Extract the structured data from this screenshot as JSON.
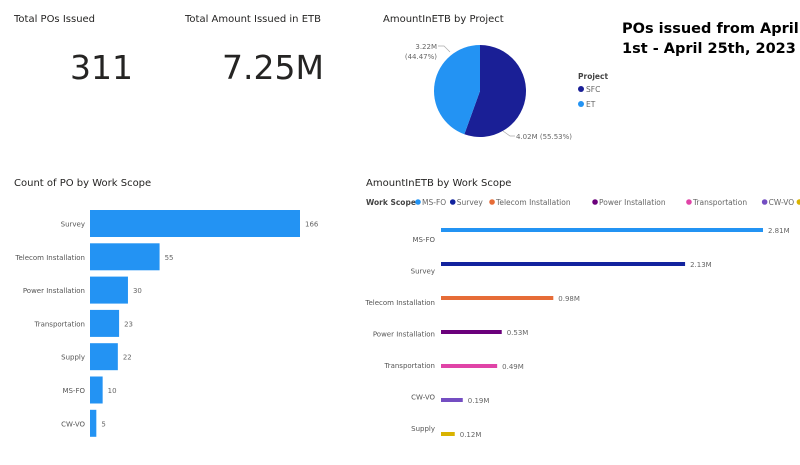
{
  "kpis": {
    "total_pos": {
      "label": "Total POs Issued",
      "value": "311"
    },
    "total_amount": {
      "label": "Total Amount Issued in ETB",
      "value": "7.25M"
    }
  },
  "note": {
    "line1": "POs issued  from April",
    "line2": "1st - April 25th, 2023"
  },
  "chart_data": [
    {
      "type": "pie",
      "title": "AmountInETB by Project",
      "legend_title": "Project",
      "legend_position": "right",
      "slices": [
        {
          "name": "SFC",
          "value": 4.02,
          "label": "4.02M (55.53%)",
          "color": "#1a1f96"
        },
        {
          "name": "ET",
          "value": 3.22,
          "label": "3.22M",
          "label2": "(44.47%)",
          "color": "#2393f3"
        }
      ]
    },
    {
      "type": "bar",
      "orientation": "horizontal",
      "title": "Count of PO by Work Scope",
      "categories": [
        "Survey",
        "Telecom Installation",
        "Power Installation",
        "Transportation",
        "Supply",
        "MS-FO",
        "CW-VO"
      ],
      "values": [
        166,
        55,
        30,
        23,
        22,
        10,
        5
      ],
      "color": "#2393f3",
      "xlim": [
        0,
        166
      ]
    },
    {
      "type": "bar",
      "orientation": "horizontal",
      "title": "AmountInETB by Work Scope",
      "legend_title": "Work Scope",
      "legend_position": "top-left",
      "categories": [
        "MS-FO",
        "Survey",
        "Telecom Installation",
        "Power Installation",
        "Transportation",
        "CW-VO",
        "Supply"
      ],
      "values": [
        2.81,
        2.13,
        0.98,
        0.53,
        0.49,
        0.19,
        0.12
      ],
      "labels": [
        "2.81M",
        "2.13M",
        "0.98M",
        "0.53M",
        "0.49M",
        "0.19M",
        "0.12M"
      ],
      "colors": [
        "#2393f3",
        "#12239e",
        "#e66c37",
        "#6b007b",
        "#e044a7",
        "#744ec2",
        "#d9b300"
      ],
      "unit": "M",
      "xlim": [
        0,
        2.81
      ]
    }
  ]
}
